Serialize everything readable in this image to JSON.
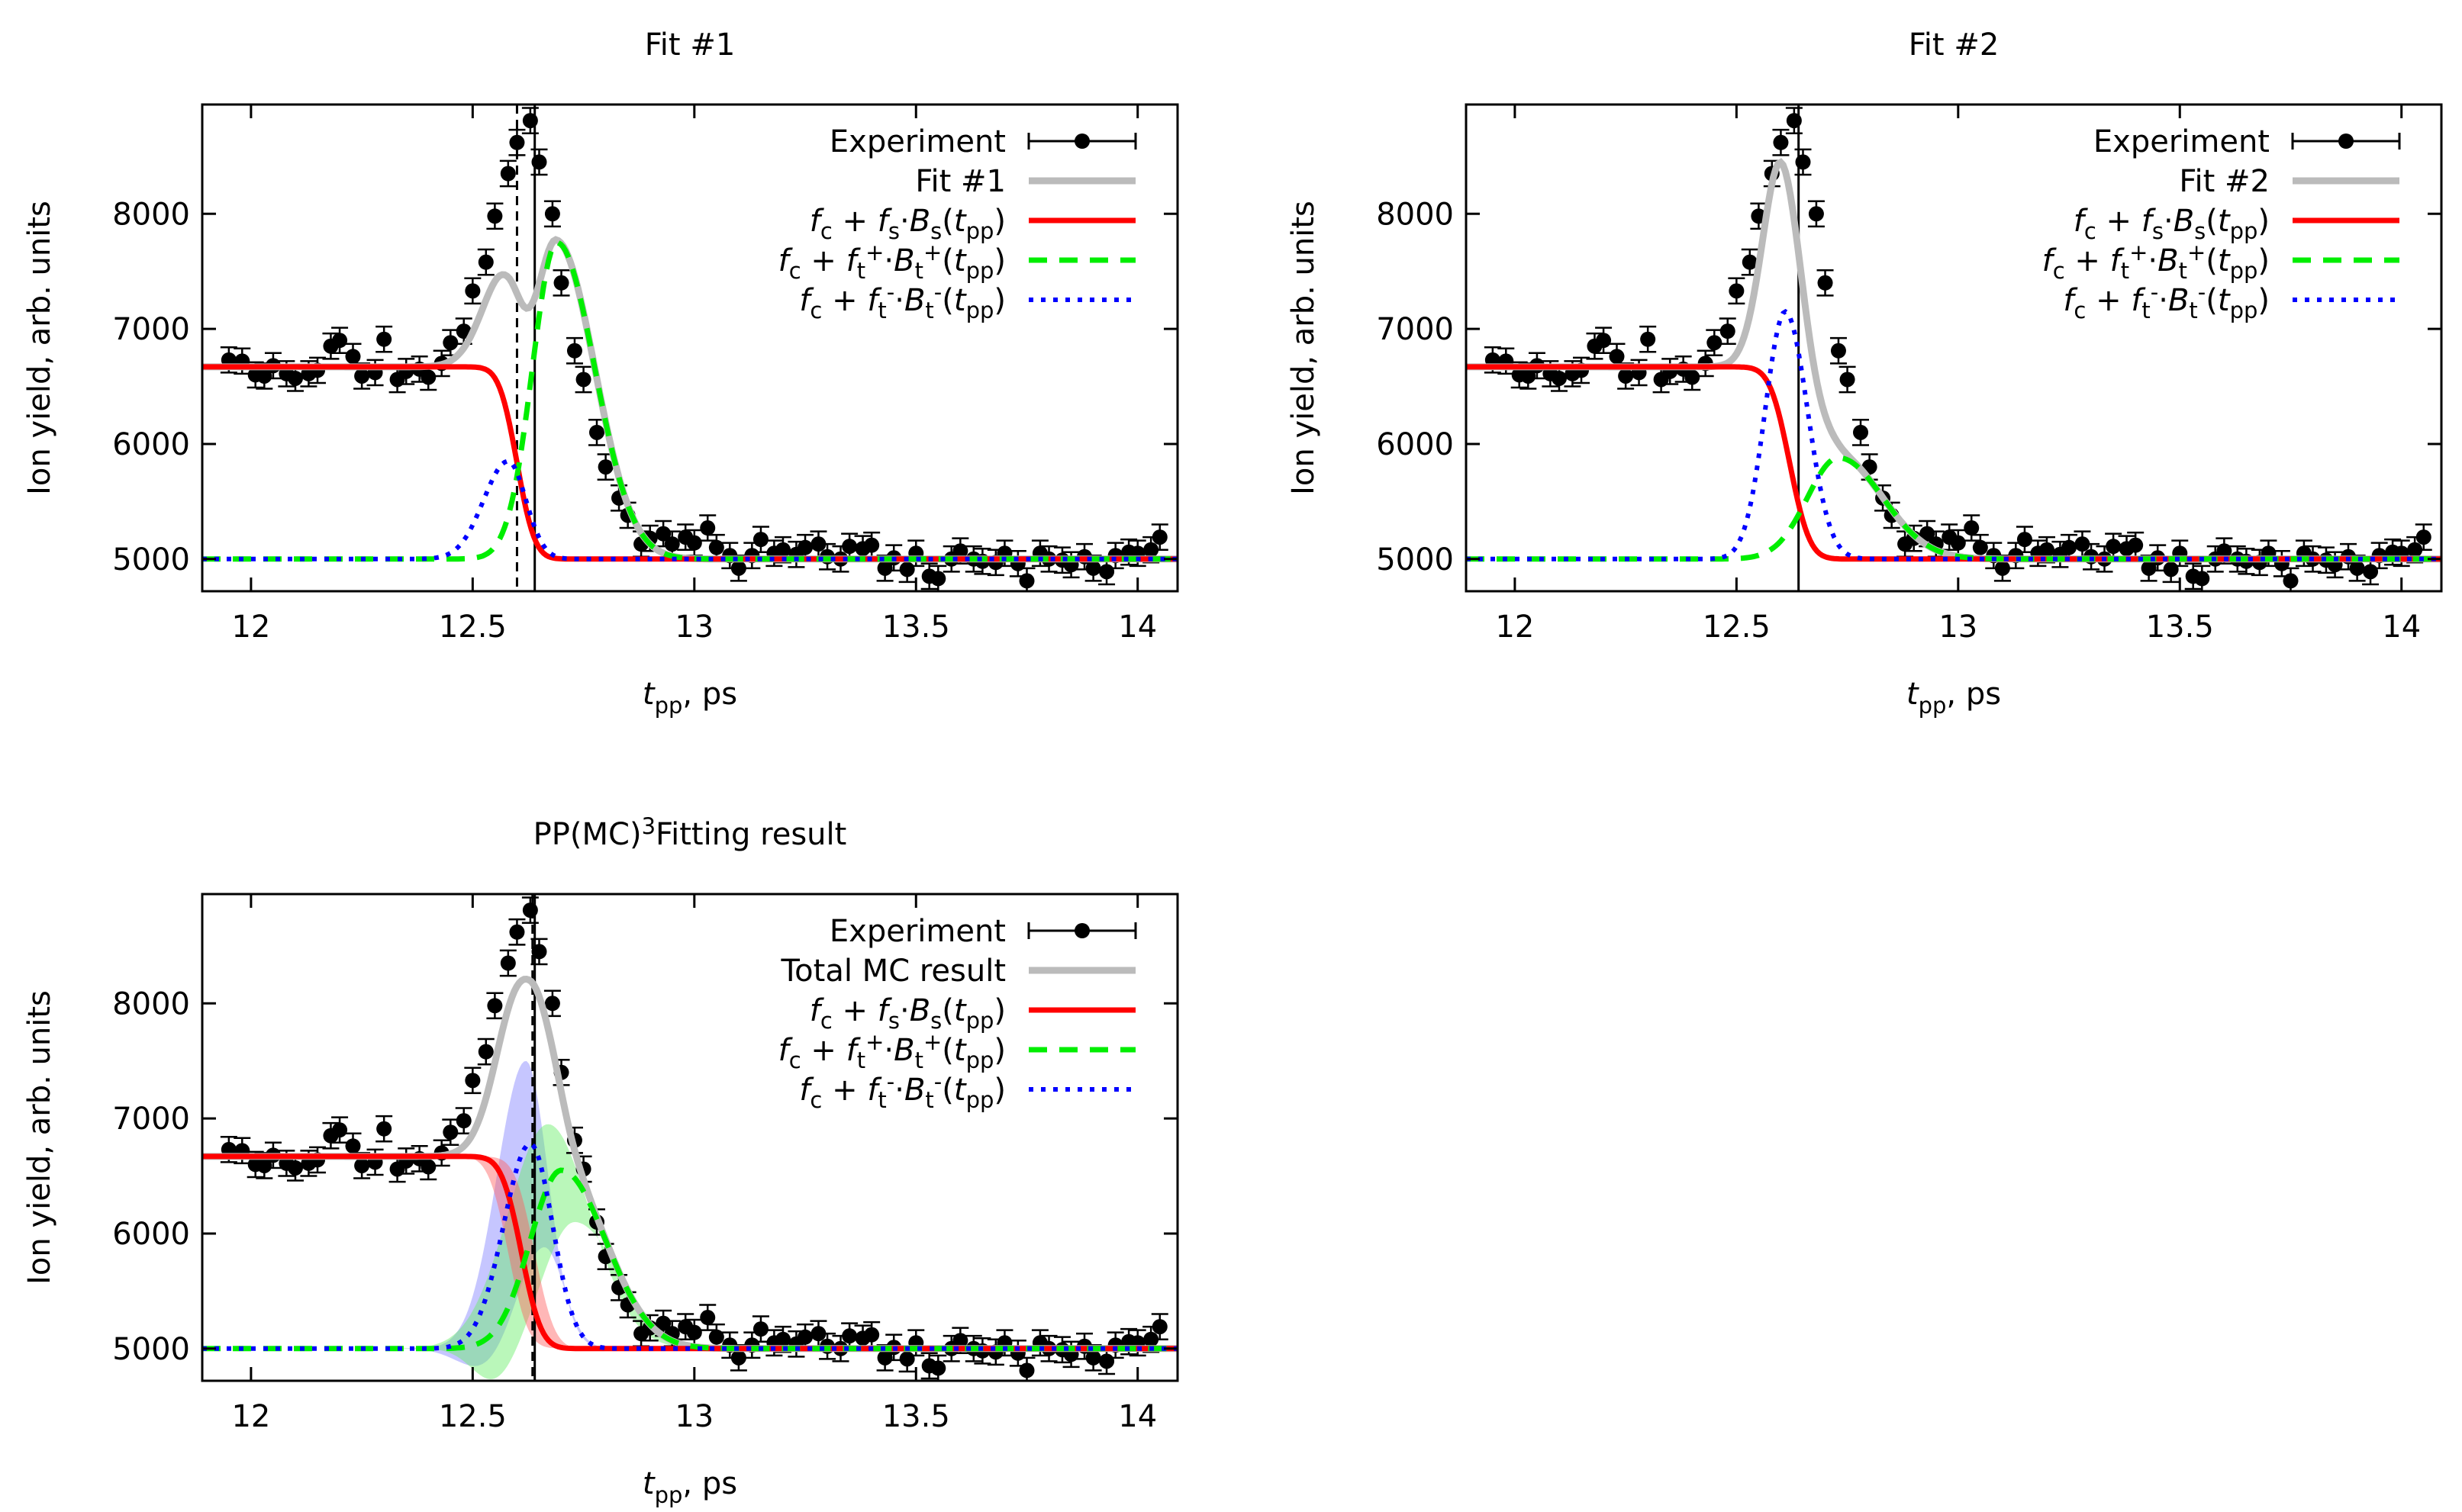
{
  "chart_data": [
    {
      "type": "line",
      "title": "Fit #1",
      "xlabel": "t",
      "xlabel_sub": "pp",
      "xlabel_suffix": ", ps",
      "ylabel": "Ion yield, arb. units",
      "xlim": [
        11.89,
        14.09
      ],
      "ylim": [
        4720,
        8950
      ],
      "xticks": [
        12,
        12.5,
        13,
        13.5,
        14
      ],
      "xtick_labels": [
        "12",
        "12.5",
        "13",
        "13.5",
        "14"
      ],
      "yticks": [
        5000,
        6000,
        7000,
        8000
      ],
      "ytick_labels": [
        "5000",
        "6000",
        "7000",
        "8000"
      ],
      "legend_position": "top-right",
      "legend": [
        {
          "key": "exp",
          "text": "Experiment"
        },
        {
          "key": "total",
          "text": "Fit #1"
        },
        {
          "key": "s",
          "text": "fc + fs·Bs(tpp)"
        },
        {
          "key": "tp",
          "text": "fc + ft+·Bt+(tpp)"
        },
        {
          "key": "tm",
          "text": "fc + ft-·Bt-(tpp)"
        }
      ],
      "vlines": [
        {
          "x": 12.64,
          "style": "solid"
        },
        {
          "x": 12.6,
          "style": "dashed"
        }
      ],
      "model": {
        "baseline": 5000,
        "s": {
          "amp": 1670,
          "center": 12.6,
          "width": 0.045
        },
        "tp": {
          "amp": 2750,
          "center": 12.69,
          "sigma_left": 0.055,
          "sigma_right": 0.085
        },
        "tm": {
          "amp": 850,
          "center": 12.58,
          "sigma_left": 0.055,
          "sigma_right": 0.04
        }
      },
      "colors": {
        "exp": "#000000",
        "total": "#bbbbbb",
        "s": "#ff0000",
        "tp": "#00ee00",
        "tm": "#0000ff"
      }
    },
    {
      "type": "line",
      "title": "Fit #2",
      "xlabel": "t",
      "xlabel_sub": "pp",
      "xlabel_suffix": ", ps",
      "ylabel": "Ion yield, arb. units",
      "xlim": [
        11.89,
        14.09
      ],
      "ylim": [
        4720,
        8950
      ],
      "xticks": [
        12,
        12.5,
        13,
        13.5,
        14
      ],
      "xtick_labels": [
        "12",
        "12.5",
        "13",
        "13.5",
        "14"
      ],
      "yticks": [
        5000,
        6000,
        7000,
        8000
      ],
      "ytick_labels": [
        "5000",
        "6000",
        "7000",
        "8000"
      ],
      "legend_position": "top-right",
      "legend": [
        {
          "key": "exp",
          "text": "Experiment"
        },
        {
          "key": "total",
          "text": "Fit #2"
        },
        {
          "key": "s",
          "text": "fc + fs·Bs(tpp)"
        },
        {
          "key": "tp",
          "text": "fc + ft+·Bt+(tpp)"
        },
        {
          "key": "tm",
          "text": "fc + ft-·Bt-(tpp)"
        }
      ],
      "vlines": [
        {
          "x": 12.64,
          "style": "solid"
        }
      ],
      "model": {
        "baseline": 5000,
        "s": {
          "amp": 1670,
          "center": 12.62,
          "width": 0.05
        },
        "tp": {
          "amp": 880,
          "center": 12.73,
          "sigma_left": 0.07,
          "sigma_right": 0.1
        },
        "tm": {
          "amp": 2150,
          "center": 12.61,
          "sigma_left": 0.045,
          "sigma_right": 0.05
        }
      },
      "colors": {
        "exp": "#000000",
        "total": "#bbbbbb",
        "s": "#ff0000",
        "tp": "#00ee00",
        "tm": "#0000ff"
      }
    },
    {
      "type": "line",
      "title": "PP(MC)",
      "title_sup": "3",
      "title_suffix": "Fitting result",
      "xlabel": "t",
      "xlabel_sub": "pp",
      "xlabel_suffix": ", ps",
      "ylabel": "Ion yield, arb. units",
      "xlim": [
        11.89,
        14.09
      ],
      "ylim": [
        4720,
        8950
      ],
      "xticks": [
        12,
        12.5,
        13,
        13.5,
        14
      ],
      "xtick_labels": [
        "12",
        "12.5",
        "13",
        "13.5",
        "14"
      ],
      "yticks": [
        5000,
        6000,
        7000,
        8000
      ],
      "ytick_labels": [
        "5000",
        "6000",
        "7000",
        "8000"
      ],
      "legend_position": "top-right",
      "legend": [
        {
          "key": "exp",
          "text": "Experiment"
        },
        {
          "key": "total",
          "text": "Total MC result"
        },
        {
          "key": "s",
          "text": "fc + fs·Bs(tpp)"
        },
        {
          "key": "tp",
          "text": "fc + ft+·Bt+(tpp)"
        },
        {
          "key": "tm",
          "text": "fc + ft-·Bt-(tpp)"
        }
      ],
      "vlines": [
        {
          "x": 12.64,
          "style": "solid"
        },
        {
          "x": 12.635,
          "style": "dashed"
        }
      ],
      "bands": true,
      "model": {
        "baseline": 5000,
        "s": {
          "amp": 1670,
          "center": 12.61,
          "width": 0.05
        },
        "tp": {
          "amp": 1550,
          "center": 12.7,
          "sigma_left": 0.07,
          "sigma_right": 0.1
        },
        "tm": {
          "amp": 1780,
          "center": 12.63,
          "sigma_left": 0.06,
          "sigma_right": 0.05
        }
      },
      "colors": {
        "exp": "#000000",
        "total": "#bbbbbb",
        "s": "#ff0000",
        "tp": "#00ee00",
        "tm": "#0000ff"
      }
    }
  ],
  "experiment": {
    "t": [
      11.95,
      11.98,
      12.01,
      12.03,
      12.05,
      12.08,
      12.1,
      12.13,
      12.15,
      12.18,
      12.2,
      12.23,
      12.25,
      12.28,
      12.3,
      12.33,
      12.35,
      12.38,
      12.4,
      12.43,
      12.45,
      12.48,
      12.5,
      12.53,
      12.55,
      12.58,
      12.6,
      12.63,
      12.65,
      12.68,
      12.7,
      12.73,
      12.75,
      12.78,
      12.8,
      12.83,
      12.85,
      12.88,
      12.9,
      12.93,
      12.95,
      12.98,
      13.0,
      13.03,
      13.05,
      13.08,
      13.1,
      13.13,
      13.15,
      13.18,
      13.2,
      13.23,
      13.25,
      13.28,
      13.3,
      13.33,
      13.35,
      13.38,
      13.4,
      13.43,
      13.45,
      13.48,
      13.5,
      13.53,
      13.55,
      13.58,
      13.6,
      13.63,
      13.65,
      13.68,
      13.7,
      13.73,
      13.75,
      13.78,
      13.8,
      13.83,
      13.85,
      13.88,
      13.9,
      13.93,
      13.95,
      13.98,
      14.0,
      14.03,
      14.05
    ],
    "y": [
      6730,
      6720,
      6600,
      6590,
      6680,
      6610,
      6570,
      6610,
      6640,
      6850,
      6900,
      6760,
      6590,
      6620,
      6910,
      6560,
      6630,
      6650,
      6580,
      6700,
      6880,
      6980,
      7330,
      7580,
      7980,
      8350,
      8620,
      8810,
      8450,
      8000,
      7400,
      6810,
      6560,
      6100,
      5800,
      5530,
      5380,
      5130,
      5180,
      5220,
      5130,
      5190,
      5140,
      5270,
      5100,
      5030,
      4920,
      5030,
      5170,
      5050,
      5080,
      5040,
      5100,
      5130,
      5020,
      5000,
      5110,
      5090,
      5120,
      4920,
      5010,
      4910,
      5050,
      4850,
      4830,
      5000,
      5070,
      5000,
      4980,
      4970,
      5050,
      4960,
      4810,
      5050,
      5000,
      4990,
      4950,
      5020,
      4920,
      4890,
      5030,
      5060,
      5050,
      5080,
      5190
    ],
    "err": 110
  }
}
